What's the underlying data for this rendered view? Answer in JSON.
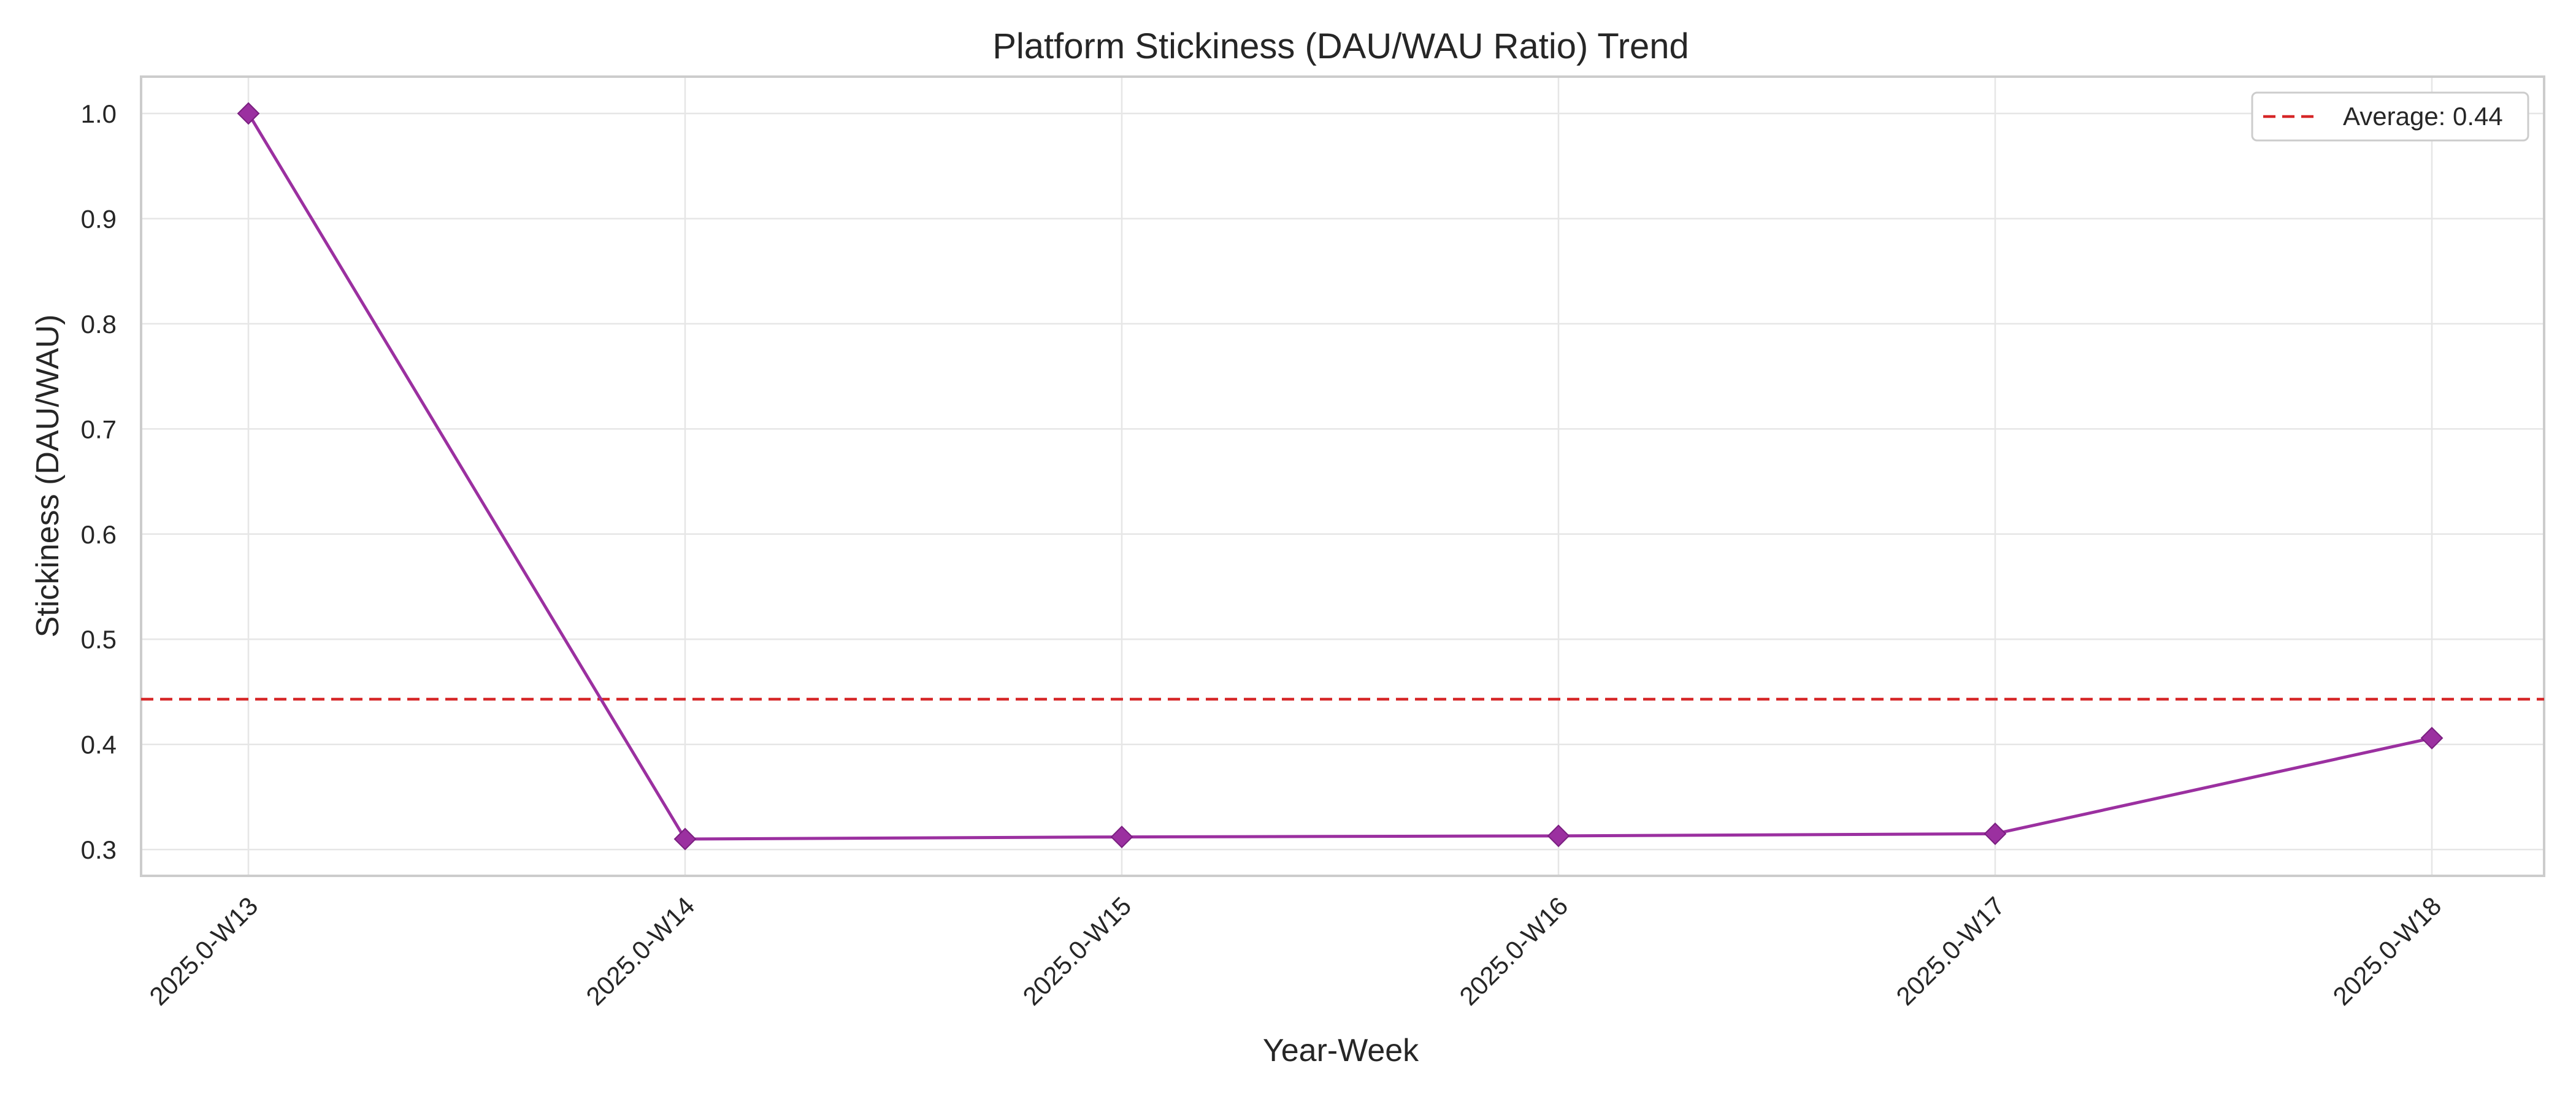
{
  "chart_data": {
    "type": "line",
    "title": "Platform Stickiness (DAU/WAU Ratio) Trend",
    "xlabel": "Year-Week",
    "ylabel": "Stickiness (DAU/WAU)",
    "categories": [
      "2025.0-W13",
      "2025.0-W14",
      "2025.0-W15",
      "2025.0-W16",
      "2025.0-W17",
      "2025.0-W18"
    ],
    "series": [
      {
        "values": [
          1.0,
          0.31,
          0.312,
          0.313,
          0.315,
          0.406
        ],
        "color": "#9b30a0",
        "marker": "diamond"
      }
    ],
    "average_line": {
      "value": 0.443,
      "label": "Average: 0.44",
      "color": "#d62728",
      "style": "dashed"
    },
    "ylim": [
      0.275,
      1.035
    ],
    "yticks": [
      0.3,
      0.4,
      0.5,
      0.6,
      0.7,
      0.8,
      0.9,
      1.0
    ],
    "ytick_labels": [
      "0.3",
      "0.4",
      "0.5",
      "0.6",
      "0.7",
      "0.8",
      "0.9",
      "1.0"
    ],
    "grid": true,
    "legend_position": "top-right"
  }
}
